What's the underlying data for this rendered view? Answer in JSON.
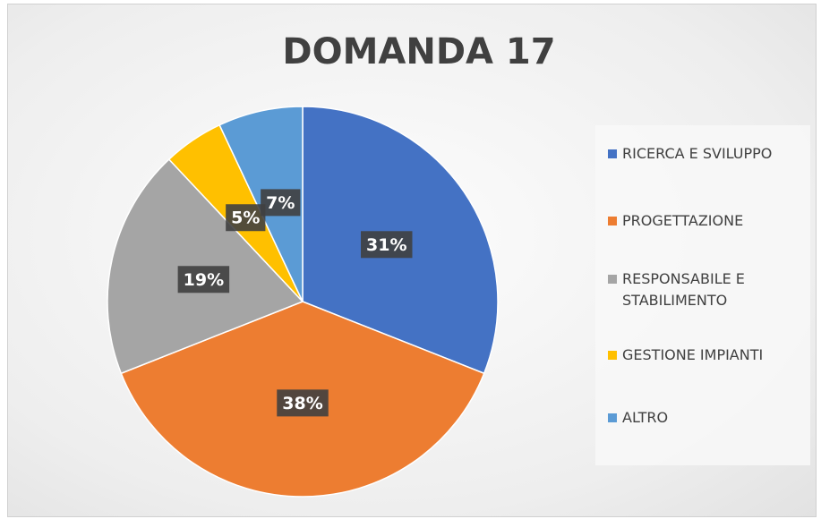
{
  "chart_data": {
    "type": "pie",
    "title": "DOMANDA 17",
    "categories": [
      "RICERCA E SVILUPPO",
      "PROGETTAZIONE",
      "RESPONSABILE E STABILIMENTO",
      "GESTIONE IMPIANTI",
      "ALTRO"
    ],
    "values": [
      31,
      38,
      19,
      5,
      7
    ],
    "value_labels": [
      "31%",
      "38%",
      "19%",
      "5%",
      "7%"
    ],
    "colors": [
      "#4472c4",
      "#ed7d31",
      "#a5a5a5",
      "#ffc000",
      "#5b9bd5"
    ],
    "legend": "right"
  }
}
